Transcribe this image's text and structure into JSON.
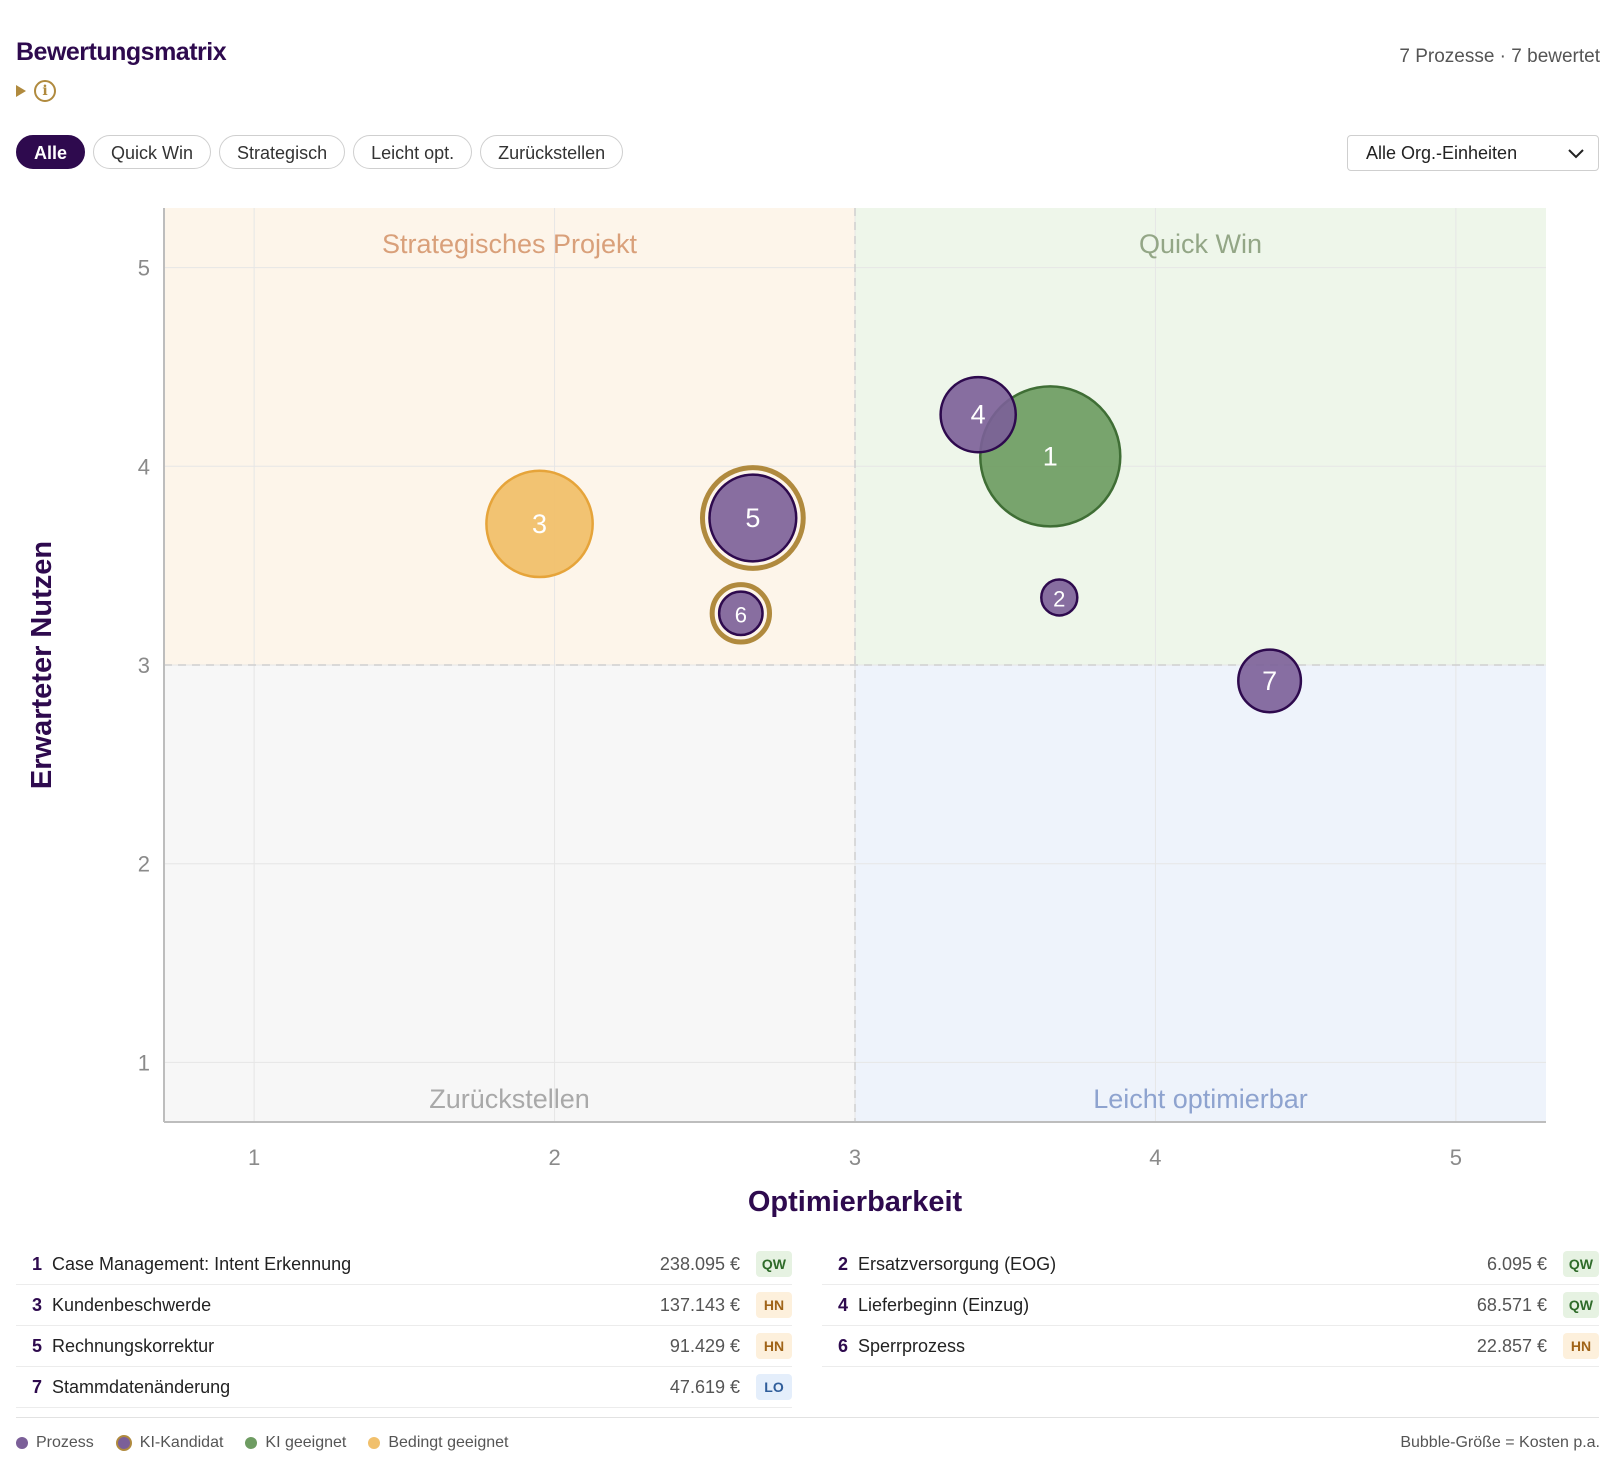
{
  "header": {
    "title": "Bewertungsmatrix",
    "summary": "7 Prozesse · 7 bewertet"
  },
  "filters": [
    {
      "label": "Alle",
      "active": true
    },
    {
      "label": "Quick Win",
      "active": false
    },
    {
      "label": "Strategisch",
      "active": false
    },
    {
      "label": "Leicht opt.",
      "active": false
    },
    {
      "label": "Zurückstellen",
      "active": false
    }
  ],
  "org_select": {
    "value": "Alle Org.-Einheiten"
  },
  "colors": {
    "prozess": "#7b5f98",
    "prozess_border": "#2e0a4e",
    "ki_kandidat_ring": "#b08a3e",
    "ki_geeignet": "#6e9c62",
    "ki_geeignet_border": "#3f6e35",
    "bedingt": "#f1c06c",
    "bedingt_border": "#e6a43a",
    "q_strategic": "#fdf5ea",
    "q_quickwin": "#eef6ea",
    "q_defer": "#f7f7f7",
    "q_easy": "#eef3fb",
    "badge_qw_bg": "#e6f2e2",
    "badge_qw_fg": "#2f6b2a",
    "badge_hn_bg": "#fdf0dc",
    "badge_hn_fg": "#a06418",
    "badge_lo_bg": "#e4eefb",
    "badge_lo_fg": "#2f5d9a"
  },
  "chart_data": {
    "type": "scatter",
    "xlabel": "Optimierbarkeit",
    "ylabel": "Erwarteter Nutzen",
    "xlim": [
      0.7,
      5.3
    ],
    "ylim": [
      0.7,
      5.3
    ],
    "xticks": [
      1,
      2,
      3,
      4,
      5
    ],
    "yticks": [
      1,
      2,
      3,
      4,
      5
    ],
    "threshold": {
      "x": 3,
      "y": 3
    },
    "quadrants": {
      "top_left": "Strategisches Projekt",
      "top_right": "Quick Win",
      "bottom_left": "Zurückstellen",
      "bottom_right": "Leicht optimierbar"
    },
    "size_note": "Bubble-Größe = Kosten p.a.",
    "points": [
      {
        "id": "1",
        "x": 3.65,
        "y": 4.05,
        "cost": 238095,
        "kind": "ki_geeignet",
        "ki_candidate": false
      },
      {
        "id": "2",
        "x": 3.68,
        "y": 3.34,
        "cost": 6095,
        "kind": "prozess",
        "ki_candidate": false
      },
      {
        "id": "3",
        "x": 1.95,
        "y": 3.71,
        "cost": 137143,
        "kind": "bedingt",
        "ki_candidate": false
      },
      {
        "id": "4",
        "x": 3.41,
        "y": 4.26,
        "cost": 68571,
        "kind": "prozess",
        "ki_candidate": false
      },
      {
        "id": "5",
        "x": 2.66,
        "y": 3.74,
        "cost": 91429,
        "kind": "prozess",
        "ki_candidate": true
      },
      {
        "id": "6",
        "x": 2.62,
        "y": 3.26,
        "cost": 22857,
        "kind": "prozess",
        "ki_candidate": true
      },
      {
        "id": "7",
        "x": 4.38,
        "y": 2.92,
        "cost": 47619,
        "kind": "prozess",
        "ki_candidate": false
      }
    ]
  },
  "processes": [
    {
      "num": "1",
      "name": "Case Management: Intent Erkennung",
      "cost": "238.095 €",
      "badge": "QW"
    },
    {
      "num": "2",
      "name": "Ersatzversorgung (EOG)",
      "cost": "6.095 €",
      "badge": "QW"
    },
    {
      "num": "3",
      "name": "Kundenbeschwerde",
      "cost": "137.143 €",
      "badge": "HN"
    },
    {
      "num": "4",
      "name": "Lieferbeginn (Einzug)",
      "cost": "68.571 €",
      "badge": "QW"
    },
    {
      "num": "5",
      "name": "Rechnungskorrektur",
      "cost": "91.429 €",
      "badge": "HN"
    },
    {
      "num": "6",
      "name": "Sperrprozess",
      "cost": "22.857 €",
      "badge": "HN"
    },
    {
      "num": "7",
      "name": "Stammdatenänderung",
      "cost": "47.619 €",
      "badge": "LO"
    }
  ],
  "legend": [
    {
      "label": "Prozess",
      "icon": "purple-dot"
    },
    {
      "label": "KI-Kandidat",
      "icon": "ringed-dot"
    },
    {
      "label": "KI geeignet",
      "icon": "green-dot"
    },
    {
      "label": "Bedingt geeignet",
      "icon": "orange-dot"
    }
  ]
}
